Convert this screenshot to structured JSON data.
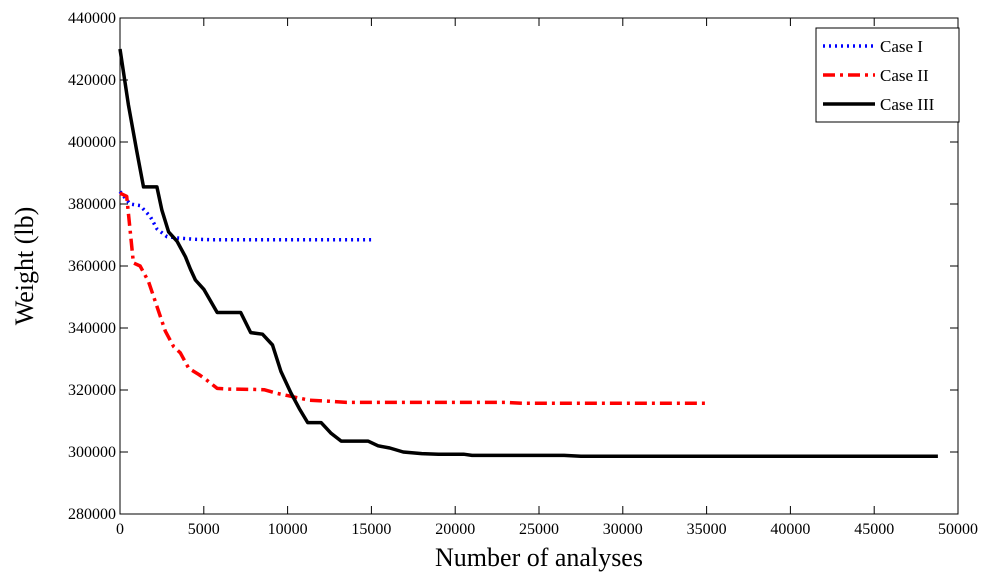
{
  "chart_data": {
    "type": "line",
    "title": "",
    "xlabel": "Number of analyses",
    "ylabel": "Weight (lb)",
    "xlim": [
      0,
      50000
    ],
    "ylim": [
      280000,
      440000
    ],
    "x_ticks": [
      0,
      5000,
      10000,
      15000,
      20000,
      25000,
      30000,
      35000,
      40000,
      45000,
      50000
    ],
    "y_ticks": [
      280000,
      300000,
      320000,
      340000,
      360000,
      380000,
      400000,
      420000,
      440000
    ],
    "x_tick_labels": [
      "0",
      "5000",
      "10000",
      "15000",
      "20000",
      "25000",
      "30000",
      "35000",
      "40000",
      "45000",
      "50000"
    ],
    "y_tick_labels": [
      "280000",
      "300000",
      "320000",
      "340000",
      "360000",
      "380000",
      "400000",
      "420000",
      "440000"
    ],
    "grid": false,
    "legend_position": "top-right",
    "series": [
      {
        "name": "Case I",
        "color": "#0000ff",
        "style": "dotted",
        "points": [
          [
            0,
            384000
          ],
          [
            300,
            382000
          ],
          [
            600,
            380000
          ],
          [
            1200,
            379500
          ],
          [
            1800,
            376000
          ],
          [
            2200,
            372000
          ],
          [
            2800,
            369500
          ],
          [
            3500,
            369000
          ],
          [
            4500,
            368600
          ],
          [
            5500,
            368500
          ],
          [
            7000,
            368500
          ],
          [
            10000,
            368500
          ],
          [
            15000,
            368500
          ]
        ]
      },
      {
        "name": "Case II",
        "color": "#ff0000",
        "style": "dashdot",
        "points": [
          [
            0,
            383500
          ],
          [
            400,
            382500
          ],
          [
            800,
            361000
          ],
          [
            1200,
            360000
          ],
          [
            1700,
            355000
          ],
          [
            2200,
            347000
          ],
          [
            2700,
            339000
          ],
          [
            3200,
            334000
          ],
          [
            3600,
            332000
          ],
          [
            4100,
            327000
          ],
          [
            4700,
            325000
          ],
          [
            5100,
            323500
          ],
          [
            5800,
            320500
          ],
          [
            6500,
            320300
          ],
          [
            8000,
            320200
          ],
          [
            8600,
            320100
          ],
          [
            9300,
            319000
          ],
          [
            10000,
            318200
          ],
          [
            10600,
            317500
          ],
          [
            11300,
            316700
          ],
          [
            12500,
            316400
          ],
          [
            13500,
            316000
          ],
          [
            15000,
            316000
          ],
          [
            20000,
            316000
          ],
          [
            23000,
            316000
          ],
          [
            24000,
            315700
          ],
          [
            30000,
            315700
          ],
          [
            35000,
            315700
          ]
        ]
      },
      {
        "name": "Case III",
        "color": "#000000",
        "style": "solid",
        "points": [
          [
            0,
            430000
          ],
          [
            500,
            412000
          ],
          [
            1000,
            397000
          ],
          [
            1400,
            385500
          ],
          [
            2200,
            385500
          ],
          [
            2500,
            378000
          ],
          [
            2900,
            371000
          ],
          [
            3400,
            368000
          ],
          [
            3900,
            363000
          ],
          [
            4200,
            359000
          ],
          [
            4500,
            355500
          ],
          [
            5000,
            352500
          ],
          [
            5800,
            345000
          ],
          [
            6300,
            345000
          ],
          [
            7200,
            345000
          ],
          [
            7800,
            338500
          ],
          [
            8500,
            338000
          ],
          [
            9100,
            334500
          ],
          [
            9600,
            326000
          ],
          [
            10200,
            319000
          ],
          [
            10700,
            314000
          ],
          [
            11200,
            309500
          ],
          [
            12000,
            309500
          ],
          [
            12600,
            306000
          ],
          [
            13200,
            303500
          ],
          [
            14000,
            303500
          ],
          [
            14800,
            303500
          ],
          [
            15400,
            302000
          ],
          [
            16100,
            301300
          ],
          [
            16900,
            300000
          ],
          [
            18000,
            299500
          ],
          [
            19000,
            299300
          ],
          [
            20500,
            299300
          ],
          [
            21000,
            298900
          ],
          [
            22000,
            298900
          ],
          [
            25000,
            298900
          ],
          [
            26500,
            298900
          ],
          [
            27500,
            298600
          ],
          [
            30000,
            298600
          ],
          [
            40000,
            298600
          ],
          [
            45000,
            298600
          ],
          [
            48800,
            298600
          ]
        ]
      }
    ]
  }
}
